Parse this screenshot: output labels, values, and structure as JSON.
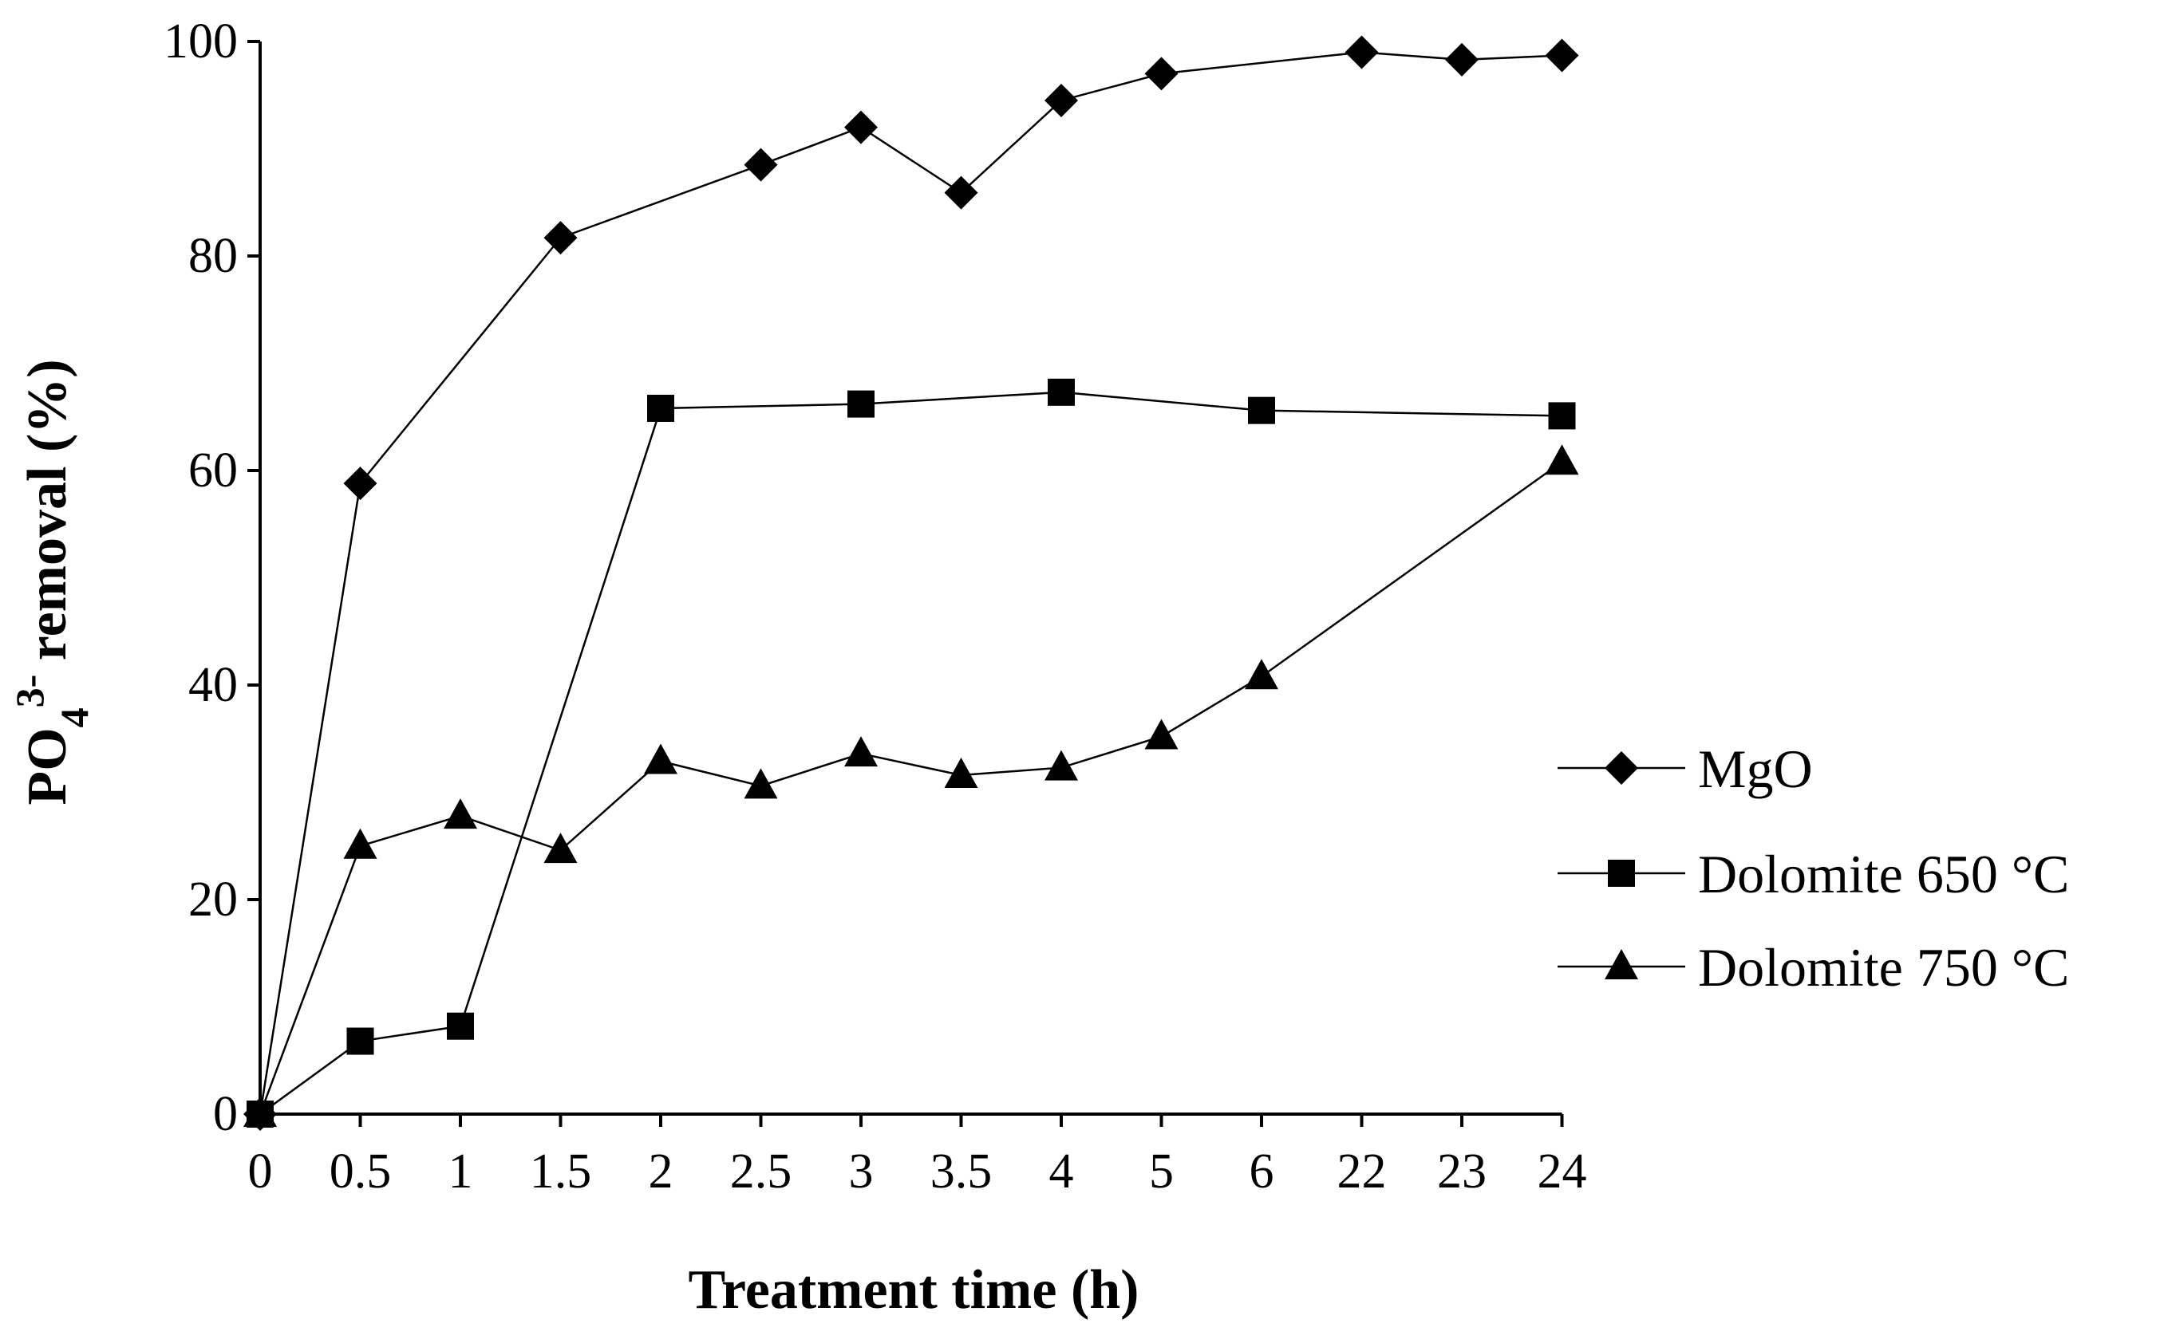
{
  "chart_data": {
    "type": "line",
    "title": "",
    "xlabel": "Treatment time (h)",
    "ylabel": {
      "prefix": "PO",
      "sub": "4",
      "sup": "3-",
      "suffix": " removal (%)"
    },
    "categories": [
      "0",
      "0.5",
      "1",
      "1.5",
      "2",
      "2.5",
      "3",
      "3.5",
      "4",
      "5",
      "6",
      "22",
      "23",
      "24"
    ],
    "ylim": [
      0,
      100
    ],
    "yticks": [
      0,
      20,
      40,
      60,
      80,
      100
    ],
    "grid": false,
    "legend_position": "right",
    "series": [
      {
        "name": "MgO",
        "marker": "diamond",
        "values": [
          0,
          58.8,
          null,
          81.7,
          null,
          88.5,
          92.0,
          85.9,
          94.5,
          97.0,
          null,
          99.0,
          98.3,
          98.7
        ]
      },
      {
        "name": "Dolomite 650 °C",
        "marker": "square",
        "values": [
          0,
          6.8,
          8.2,
          null,
          65.8,
          null,
          66.2,
          null,
          67.3,
          null,
          65.6,
          null,
          null,
          65.1
        ]
      },
      {
        "name": "Dolomite 750 °C",
        "marker": "triangle",
        "values": [
          0,
          25.0,
          27.8,
          24.6,
          32.9,
          30.6,
          33.6,
          31.6,
          32.3,
          35.2,
          40.8,
          null,
          null,
          60.8
        ]
      }
    ]
  }
}
